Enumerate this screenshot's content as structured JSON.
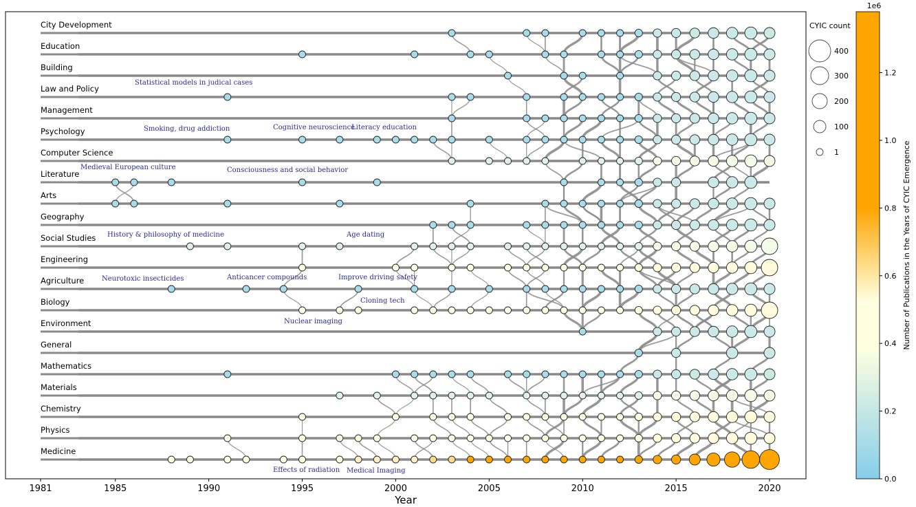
{
  "chart_data": {
    "type": "scatter",
    "xlabel": "Year",
    "xlim": [
      1981,
      2021.5
    ],
    "xticks": [
      1981,
      1985,
      1990,
      1995,
      2000,
      2005,
      2010,
      2015,
      2020
    ],
    "colorbar": {
      "label": "Number of Publications in the Years of CYIC Emergence",
      "exponent": "1e6",
      "ticks": [
        "0.0",
        "0.2",
        "0.4",
        "0.6",
        "0.8",
        "1.0",
        "1.2"
      ],
      "max": 1.38,
      "colors": [
        "#87ceeb",
        "#ffffe0",
        "#ffa500"
      ]
    },
    "size_legend": {
      "title": "CYIC count",
      "items": [
        {
          "label": "400",
          "value": 400
        },
        {
          "label": "300",
          "value": 300
        },
        {
          "label": "200",
          "value": 200
        },
        {
          "label": "100",
          "value": 100
        },
        {
          "label": "1",
          "value": 1
        }
      ]
    },
    "rows": [
      {
        "name": "City Development",
        "color": "blue",
        "years": [
          2003,
          2007,
          2008,
          2010,
          2011,
          2012,
          2013,
          2014,
          2015,
          2016,
          2017,
          2018,
          2019,
          2020
        ]
      },
      {
        "name": "Education",
        "color": "blue",
        "years": [
          1995,
          2001,
          2004,
          2005,
          2008,
          2009,
          2011,
          2012,
          2013,
          2014,
          2015,
          2016,
          2017,
          2018,
          2019,
          2020
        ]
      },
      {
        "name": "Building",
        "color": "blue",
        "years": [
          2006,
          2009,
          2010,
          2012,
          2014,
          2015,
          2016,
          2017,
          2018,
          2019,
          2020
        ]
      },
      {
        "name": "Law and Policy",
        "color": "blue",
        "years": [
          1991,
          2003,
          2004,
          2007,
          2009,
          2010,
          2011,
          2012,
          2013,
          2014,
          2015,
          2016,
          2017,
          2018,
          2019,
          2020
        ]
      },
      {
        "name": "Management",
        "color": "blue",
        "years": [
          2003,
          2007,
          2008,
          2009,
          2010,
          2011,
          2012,
          2013,
          2014,
          2015,
          2016,
          2017,
          2018,
          2019,
          2020
        ]
      },
      {
        "name": "Psychology",
        "color": "blue",
        "years": [
          1991,
          1995,
          1997,
          1999,
          2000,
          2001,
          2002,
          2003,
          2005,
          2007,
          2008,
          2009,
          2010,
          2011,
          2012,
          2013,
          2014,
          2015,
          2016,
          2017,
          2018,
          2019,
          2020
        ]
      },
      {
        "name": "Computer Science",
        "color": "mixed",
        "years": [
          2003,
          2005,
          2006,
          2007,
          2008,
          2010,
          2011,
          2012,
          2013,
          2014,
          2015,
          2016,
          2017,
          2018,
          2019,
          2020
        ]
      },
      {
        "name": "Literature",
        "color": "blue",
        "years": [
          1985,
          1986,
          1988,
          1995,
          1999,
          2009,
          2011,
          2012,
          2013,
          2014,
          2015,
          2017,
          2018,
          2019
        ]
      },
      {
        "name": "Arts",
        "color": "blue",
        "years": [
          1985,
          1986,
          1991,
          1997,
          2004,
          2008,
          2009,
          2010,
          2011,
          2012,
          2013,
          2014,
          2015,
          2016,
          2017,
          2018,
          2019,
          2020
        ]
      },
      {
        "name": "Geography",
        "color": "blue",
        "years": [
          2002,
          2003,
          2004,
          2007,
          2008,
          2009,
          2010,
          2011,
          2012,
          2013,
          2014,
          2015,
          2016,
          2017,
          2018,
          2019,
          2020
        ]
      },
      {
        "name": "Social Studies",
        "color": "mixed",
        "years": [
          1989,
          1991,
          1995,
          1997,
          2001,
          2002,
          2003,
          2004,
          2006,
          2007,
          2008,
          2009,
          2010,
          2011,
          2012,
          2013,
          2014,
          2015,
          2016,
          2017,
          2018,
          2019,
          2020
        ]
      },
      {
        "name": "Engineering",
        "color": "yellow",
        "years": [
          1995,
          2000,
          2001,
          2003,
          2004,
          2006,
          2007,
          2008,
          2009,
          2010,
          2011,
          2012,
          2013,
          2014,
          2015,
          2016,
          2017,
          2018,
          2019,
          2020
        ]
      },
      {
        "name": "Agriculture",
        "color": "blue",
        "years": [
          1988,
          1992,
          1994,
          1998,
          2001,
          2003,
          2005,
          2007,
          2008,
          2009,
          2010,
          2011,
          2012,
          2013,
          2014,
          2015,
          2016,
          2017,
          2018,
          2019,
          2020
        ]
      },
      {
        "name": "Biology",
        "color": "yellow",
        "years": [
          1995,
          1997,
          1998,
          2001,
          2002,
          2003,
          2004,
          2005,
          2006,
          2007,
          2008,
          2009,
          2010,
          2011,
          2012,
          2013,
          2014,
          2015,
          2016,
          2017,
          2018,
          2019,
          2020
        ]
      },
      {
        "name": "Environment",
        "color": "blue",
        "years": [
          2010,
          2014,
          2015,
          2016,
          2017,
          2018,
          2019,
          2020
        ]
      },
      {
        "name": "General",
        "color": "blue",
        "years": [
          2013,
          2015,
          2018,
          2020
        ]
      },
      {
        "name": "Mathematics",
        "color": "blue",
        "years": [
          1991,
          2000,
          2001,
          2002,
          2003,
          2004,
          2006,
          2007,
          2008,
          2009,
          2010,
          2011,
          2012,
          2013,
          2014,
          2015,
          2016,
          2017,
          2018,
          2019,
          2020
        ]
      },
      {
        "name": "Materials",
        "color": "mixed",
        "years": [
          1997,
          1999,
          2001,
          2002,
          2003,
          2004,
          2005,
          2007,
          2008,
          2009,
          2010,
          2011,
          2012,
          2013,
          2014,
          2015,
          2016,
          2017,
          2018,
          2019,
          2020
        ]
      },
      {
        "name": "Chemistry",
        "color": "yellow",
        "years": [
          1995,
          2000,
          2002,
          2003,
          2004,
          2006,
          2007,
          2008,
          2009,
          2010,
          2011,
          2012,
          2013,
          2014,
          2015,
          2016,
          2017,
          2018,
          2019,
          2020
        ]
      },
      {
        "name": "Physics",
        "color": "yellow",
        "years": [
          1991,
          1995,
          1997,
          1998,
          1999,
          2001,
          2002,
          2003,
          2004,
          2005,
          2006,
          2007,
          2008,
          2009,
          2010,
          2011,
          2012,
          2013,
          2014,
          2015,
          2016,
          2017,
          2018,
          2019,
          2020
        ]
      },
      {
        "name": "Medicine",
        "color": "orange",
        "years": [
          1988,
          1989,
          1991,
          1992,
          1994,
          1995,
          1997,
          1998,
          1999,
          2000,
          2001,
          2002,
          2003,
          2004,
          2005,
          2006,
          2007,
          2008,
          2009,
          2010,
          2011,
          2012,
          2013,
          2014,
          2015,
          2016,
          2017,
          2018,
          2019,
          2020
        ]
      }
    ],
    "annotations": [
      {
        "text": "Statistical models in judical cases"
      },
      {
        "text": "Smoking, drug addiction"
      },
      {
        "text": "Cognitive neuroscience"
      },
      {
        "text": "Literacy education"
      },
      {
        "text": "Medieval European culture"
      },
      {
        "text": "Consciousness and social behavior"
      },
      {
        "text": "History & philosophy of medicine"
      },
      {
        "text": "Age dating"
      },
      {
        "text": "Neurotoxic insecticides"
      },
      {
        "text": "Anticancer compounds"
      },
      {
        "text": "Improve driving safety"
      },
      {
        "text": "Cloning tech"
      },
      {
        "text": "Nuclear imaging"
      },
      {
        "text": "Effects of radiation"
      },
      {
        "text": "Medical Imaging"
      }
    ]
  }
}
